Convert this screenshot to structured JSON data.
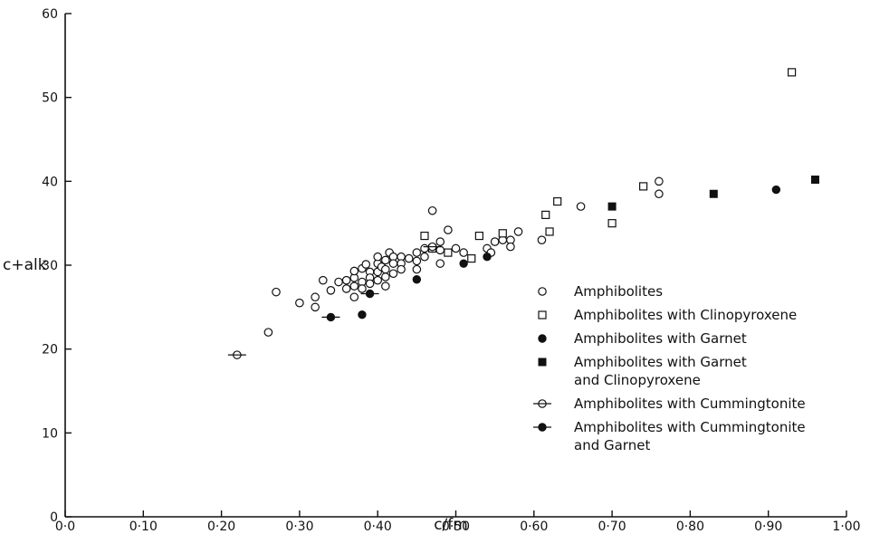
{
  "chart_data": {
    "type": "scatter",
    "xlabel": "c/fm",
    "ylabel": "c+alk",
    "xlim": [
      0,
      1.0
    ],
    "ylim": [
      0,
      60
    ],
    "x_ticks": [
      "0·0",
      "0·10",
      "0·20",
      "0·30",
      "0·40",
      "0·50",
      "0·60",
      "0·70",
      "0·80",
      "0·90",
      "1·00"
    ],
    "y_ticks": [
      "0",
      "10",
      "20",
      "30",
      "40",
      "50",
      "60"
    ],
    "legend_position": "lower-right",
    "series": [
      {
        "name": "Amphibolites",
        "marker": "open-circle",
        "points": [
          [
            0.26,
            22.0
          ],
          [
            0.27,
            26.8
          ],
          [
            0.3,
            25.5
          ],
          [
            0.32,
            26.2
          ],
          [
            0.32,
            25.0
          ],
          [
            0.33,
            28.2
          ],
          [
            0.34,
            27.0
          ],
          [
            0.35,
            28.0
          ],
          [
            0.36,
            27.2
          ],
          [
            0.36,
            28.2
          ],
          [
            0.37,
            28.5
          ],
          [
            0.37,
            29.3
          ],
          [
            0.37,
            26.2
          ],
          [
            0.37,
            27.5
          ],
          [
            0.38,
            29.6
          ],
          [
            0.38,
            28.0
          ],
          [
            0.38,
            27.2
          ],
          [
            0.385,
            30.1
          ],
          [
            0.39,
            29.2
          ],
          [
            0.39,
            28.5
          ],
          [
            0.39,
            27.8
          ],
          [
            0.4,
            30.2
          ],
          [
            0.4,
            29.2
          ],
          [
            0.4,
            28.2
          ],
          [
            0.4,
            31.0
          ],
          [
            0.405,
            29.8
          ],
          [
            0.41,
            30.6
          ],
          [
            0.41,
            29.5
          ],
          [
            0.41,
            28.6
          ],
          [
            0.41,
            27.5
          ],
          [
            0.415,
            31.5
          ],
          [
            0.42,
            31.0
          ],
          [
            0.42,
            30.2
          ],
          [
            0.42,
            29.0
          ],
          [
            0.43,
            31.0
          ],
          [
            0.43,
            30.2
          ],
          [
            0.43,
            29.5
          ],
          [
            0.44,
            30.8
          ],
          [
            0.45,
            31.5
          ],
          [
            0.45,
            30.5
          ],
          [
            0.45,
            29.5
          ],
          [
            0.46,
            32.0
          ],
          [
            0.46,
            31.0
          ],
          [
            0.47,
            36.5
          ],
          [
            0.47,
            32.0
          ],
          [
            0.48,
            32.8
          ],
          [
            0.48,
            31.8
          ],
          [
            0.48,
            30.2
          ],
          [
            0.49,
            34.2
          ],
          [
            0.5,
            32.0
          ],
          [
            0.51,
            31.5
          ],
          [
            0.54,
            32.0
          ],
          [
            0.545,
            31.5
          ],
          [
            0.55,
            32.8
          ],
          [
            0.56,
            33.0
          ],
          [
            0.57,
            33.0
          ],
          [
            0.57,
            32.2
          ],
          [
            0.58,
            34.0
          ],
          [
            0.61,
            33.0
          ],
          [
            0.66,
            37.0
          ],
          [
            0.76,
            40.0
          ],
          [
            0.76,
            38.5
          ]
        ]
      },
      {
        "name": "Amphibolites with Clinopyroxene",
        "marker": "open-square",
        "points": [
          [
            0.46,
            33.5
          ],
          [
            0.47,
            32.0
          ],
          [
            0.49,
            31.5
          ],
          [
            0.52,
            30.8
          ],
          [
            0.53,
            33.5
          ],
          [
            0.56,
            33.8
          ],
          [
            0.615,
            36.0
          ],
          [
            0.62,
            34.0
          ],
          [
            0.63,
            37.6
          ],
          [
            0.7,
            35.0
          ],
          [
            0.74,
            39.4
          ],
          [
            0.93,
            53.0
          ]
        ]
      },
      {
        "name": "Amphibolites with Garnet",
        "marker": "filled-circle",
        "points": [
          [
            0.38,
            24.1
          ],
          [
            0.45,
            28.3
          ],
          [
            0.51,
            30.2
          ],
          [
            0.54,
            31.0
          ],
          [
            0.91,
            39.0
          ]
        ]
      },
      {
        "name": "Amphibolites with Garnet and Clinopyroxene",
        "marker": "filled-square",
        "points": [
          [
            0.7,
            37.0
          ],
          [
            0.83,
            38.5
          ],
          [
            0.96,
            40.2
          ]
        ]
      },
      {
        "name": "Amphibolites with Cummingtonite",
        "marker": "open-circle-bar",
        "points": [
          [
            0.22,
            19.3
          ],
          [
            0.47,
            32.2
          ]
        ]
      },
      {
        "name": "Amphibolites with Cummingtonite and Garnet",
        "marker": "filled-circle-bar",
        "points": [
          [
            0.34,
            23.8
          ],
          [
            0.39,
            26.6
          ]
        ]
      }
    ],
    "legend_entries": [
      {
        "marker": "open-circle",
        "lines": [
          "Amphibolites"
        ]
      },
      {
        "marker": "open-square",
        "lines": [
          "Amphibolites with Clinopyroxene"
        ]
      },
      {
        "marker": "filled-circle",
        "lines": [
          "Amphibolites with Garnet"
        ]
      },
      {
        "marker": "filled-square",
        "lines": [
          "Amphibolites with Garnet",
          "and Clinopyroxene"
        ]
      },
      {
        "marker": "open-circle-bar",
        "lines": [
          "Amphibolites with Cummingtonite"
        ]
      },
      {
        "marker": "filled-circle-bar",
        "lines": [
          "Amphibolites with Cummingtonite",
          "and Garnet"
        ]
      }
    ]
  }
}
